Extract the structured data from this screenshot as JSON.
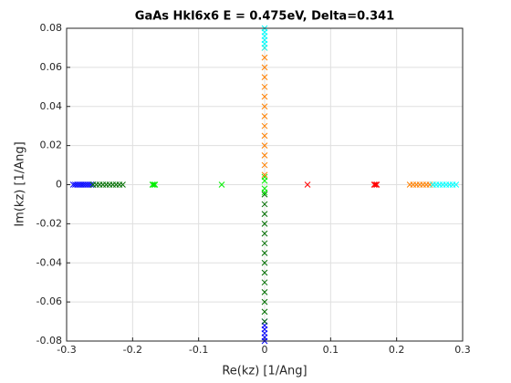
{
  "chart_data": {
    "type": "scatter",
    "title": "GaAs Hkl6x6 E = 0.475eV, Delta=0.341",
    "x_label": "Re(kz) [1/Ang]",
    "y_label": "Im(kz) [1/Ang]",
    "xlim": [
      -0.3,
      0.3
    ],
    "ylim": [
      -0.08,
      0.08
    ],
    "xticks": [
      -0.3,
      -0.2,
      -0.1,
      0,
      0.1,
      0.2,
      0.3
    ],
    "yticks": [
      -0.08,
      -0.06,
      -0.04,
      -0.02,
      0,
      0.02,
      0.04,
      0.06,
      0.08
    ],
    "grid": true,
    "marker": "x",
    "series": [
      {
        "color": "#0000ff",
        "x": [
          -0.29,
          -0.287,
          -0.284,
          -0.281,
          -0.278,
          -0.275,
          -0.272,
          -0.269,
          -0.266,
          -0.263,
          -0.26,
          0,
          0,
          0,
          0,
          0,
          0
        ],
        "y": [
          0,
          0,
          0,
          0,
          0,
          0,
          0,
          0,
          0,
          0,
          0,
          -0.08,
          -0.078,
          -0.076,
          -0.074,
          -0.072,
          -0.07
        ]
      },
      {
        "color": "#006f00",
        "x": [
          -0.26,
          -0.255,
          -0.25,
          -0.245,
          -0.24,
          -0.235,
          -0.23,
          -0.225,
          -0.22,
          -0.215,
          0,
          0,
          0,
          0,
          0,
          0,
          0,
          0,
          0,
          0,
          0,
          0,
          0,
          0
        ],
        "y": [
          0,
          0,
          0,
          0,
          0,
          0,
          0,
          0,
          0,
          0,
          -0.07,
          -0.065,
          -0.06,
          -0.055,
          -0.05,
          -0.045,
          -0.04,
          -0.035,
          -0.03,
          -0.025,
          -0.02,
          -0.015,
          -0.01,
          -0.005
        ]
      },
      {
        "color": "#00ee00",
        "x": [
          -0.17,
          -0.168,
          -0.166,
          -0.065,
          0,
          0,
          0,
          0
        ],
        "y": [
          0,
          0,
          0,
          0,
          -0.004,
          -0.002,
          0.002,
          0.004
        ]
      },
      {
        "color": "#ff0000",
        "x": [
          0.065,
          0.166,
          0.168,
          0.17
        ],
        "y": [
          0,
          0,
          0,
          0
        ]
      },
      {
        "color": "#ff8000",
        "x": [
          0.22,
          0.225,
          0.23,
          0.235,
          0.24,
          0.245,
          0.25,
          0.255,
          0,
          0,
          0,
          0,
          0,
          0,
          0,
          0,
          0,
          0,
          0,
          0,
          0,
          0
        ],
        "y": [
          0,
          0,
          0,
          0,
          0,
          0,
          0,
          0,
          0.005,
          0.01,
          0.015,
          0.02,
          0.025,
          0.03,
          0.035,
          0.04,
          0.045,
          0.05,
          0.055,
          0.06,
          0.065,
          0.07
        ]
      },
      {
        "color": "#00ffff",
        "x": [
          0.255,
          0.26,
          0.265,
          0.27,
          0.275,
          0.28,
          0.285,
          0.29,
          0,
          0,
          0,
          0,
          0,
          0
        ],
        "y": [
          0,
          0,
          0,
          0,
          0,
          0,
          0,
          0,
          0.07,
          0.072,
          0.074,
          0.076,
          0.078,
          0.08
        ]
      }
    ]
  }
}
